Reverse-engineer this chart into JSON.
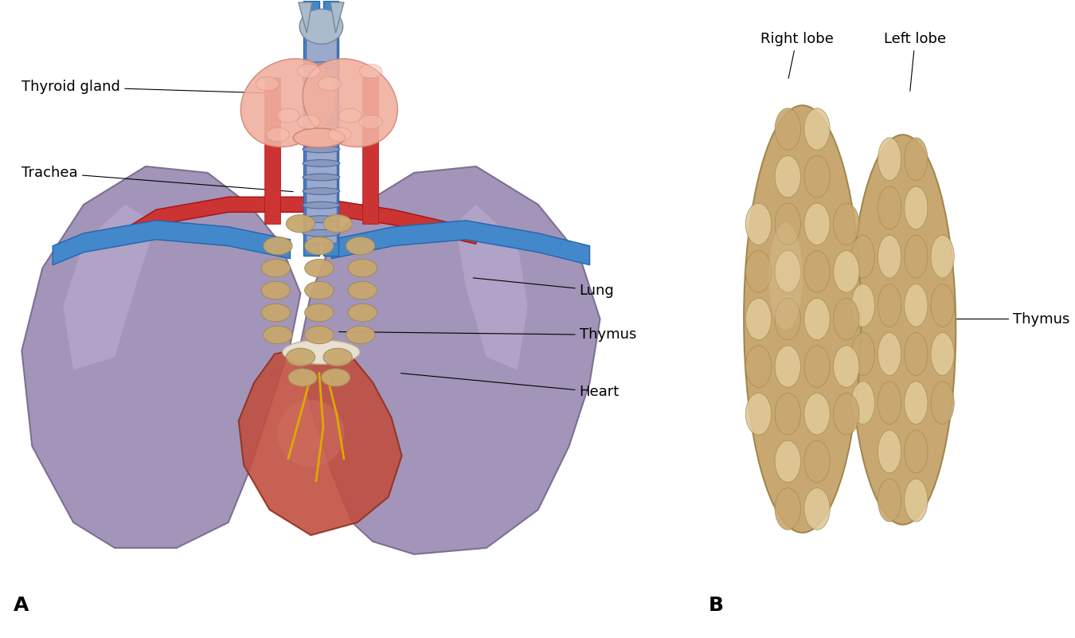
{
  "bg_color": "#ffffff",
  "fig_width": 13.5,
  "fig_height": 8.01,
  "panel_A_label": "A",
  "panel_B_label": "B",
  "font_size_labels": 13,
  "font_size_panel": 16,
  "text_color": "#000000",
  "lung_color": "#9d8fb5",
  "lung_edge": "#7a6c8f",
  "vessel_blue": "#4488cc",
  "vessel_blue_edge": "#2266aa",
  "vessel_red": "#cc3333",
  "vessel_red_edge": "#aa1111",
  "trachea_color": "#99aacc",
  "trachea_edge": "#5566aa",
  "thyroid_color": "#f0b0a0",
  "thyroid_edge": "#d08070",
  "heart_color": "#c05040",
  "heart_edge": "#903020",
  "thymus_color": "#c8a870",
  "thymus_edge": "#a08850",
  "lobe_color": "#c8a870",
  "lobe_dark": "#a08850",
  "lobe_light": "#e0c898",
  "annotations_A": [
    [
      "Thyroid gland",
      [
        0.02,
        0.865
      ],
      [
        0.265,
        0.855
      ]
    ],
    [
      "Trachea",
      [
        0.02,
        0.73
      ],
      [
        0.285,
        0.7
      ]
    ],
    [
      "Lung",
      [
        0.56,
        0.545
      ],
      [
        0.455,
        0.565
      ]
    ],
    [
      "Thymus",
      [
        0.56,
        0.475
      ],
      [
        0.325,
        0.48
      ]
    ],
    [
      "Heart",
      [
        0.56,
        0.385
      ],
      [
        0.385,
        0.415
      ]
    ]
  ],
  "annotations_B": [
    [
      "Right lobe",
      [
        0.735,
        0.94
      ],
      [
        0.762,
        0.875
      ]
    ],
    [
      "Left lobe",
      [
        0.855,
        0.94
      ],
      [
        0.88,
        0.855
      ]
    ]
  ],
  "thymus_B_arrow": [
    "Thymus",
    [
      0.98,
      0.5
    ],
    [
      0.87,
      0.5
    ]
  ]
}
